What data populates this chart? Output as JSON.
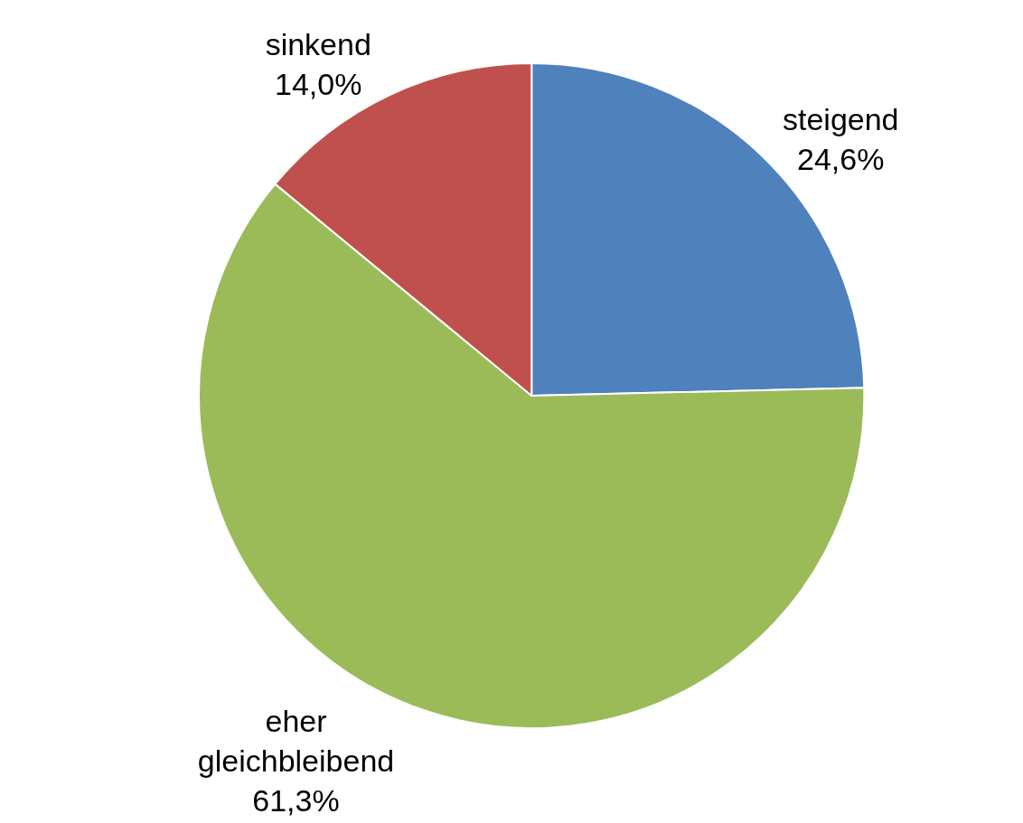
{
  "chart_data": {
    "type": "pie",
    "categories": [
      "steigend",
      "eher gleichbleibend",
      "sinkend"
    ],
    "values": [
      24.6,
      61.3,
      14.0
    ],
    "value_labels": [
      "24,6%",
      "61,3%",
      "14,0%"
    ],
    "colors": [
      "#4f81bd",
      "#9bbb59",
      "#c0504d"
    ],
    "legend": false
  }
}
